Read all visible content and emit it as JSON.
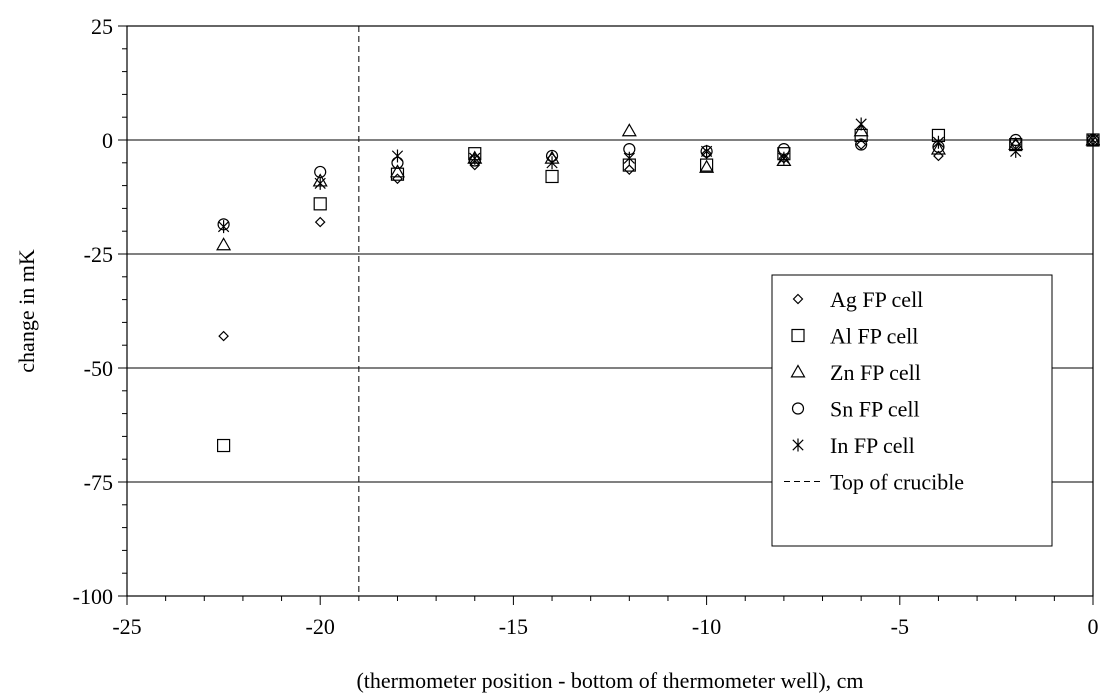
{
  "chart_data": {
    "type": "scatter",
    "title": "",
    "xlabel": "(thermometer position - bottom of thermometer well), cm",
    "ylabel": "change in mK",
    "xlim": [
      -25,
      0
    ],
    "ylim": [
      -100,
      25
    ],
    "xticks": [
      -25,
      -20,
      -15,
      -10,
      -5,
      0
    ],
    "yticks": [
      25,
      0,
      -25,
      -50,
      -75,
      -100
    ],
    "gridlines_y": [
      0,
      -25,
      -50,
      -75
    ],
    "legend_position": "right-center",
    "reference_line": {
      "name": "Top of crucible",
      "x": -19
    },
    "series": [
      {
        "name": "Ag FP cell",
        "marker": "diamond",
        "points": [
          [
            -22.5,
            -43
          ],
          [
            -20,
            -18
          ],
          [
            -18,
            -8.5
          ],
          [
            -16,
            -5.5
          ],
          [
            -14,
            -4
          ],
          [
            -12,
            -6.5
          ],
          [
            -10,
            -3
          ],
          [
            -8,
            -4
          ],
          [
            -6,
            -1
          ],
          [
            -4,
            -3.5
          ],
          [
            -2,
            -1
          ],
          [
            0,
            0
          ]
        ]
      },
      {
        "name": "Al FP cell",
        "marker": "square",
        "points": [
          [
            -22.5,
            -67
          ],
          [
            -20,
            -14
          ],
          [
            -18,
            -7.5
          ],
          [
            -16,
            -3
          ],
          [
            -14,
            -8
          ],
          [
            -12,
            -5.5
          ],
          [
            -10,
            -5.5
          ],
          [
            -8,
            -3
          ],
          [
            -6,
            1
          ],
          [
            -4,
            1
          ],
          [
            -2,
            -1
          ],
          [
            0,
            0
          ]
        ]
      },
      {
        "name": "Zn FP cell",
        "marker": "triangle",
        "points": [
          [
            -22.5,
            -23
          ],
          [
            -20,
            -9
          ],
          [
            -18,
            -7
          ],
          [
            -16,
            -4
          ],
          [
            -14,
            -4
          ],
          [
            -12,
            2
          ],
          [
            -10,
            -6
          ],
          [
            -8,
            -4.5
          ],
          [
            -6,
            2
          ],
          [
            -4,
            -2
          ],
          [
            -2,
            -1
          ],
          [
            0,
            0
          ]
        ]
      },
      {
        "name": "Sn FP cell",
        "marker": "circle",
        "points": [
          [
            -22.5,
            -18.5
          ],
          [
            -20,
            -7
          ],
          [
            -18,
            -5
          ],
          [
            -16,
            -4.5
          ],
          [
            -14,
            -3.5
          ],
          [
            -12,
            -2
          ],
          [
            -10,
            -2.5
          ],
          [
            -8,
            -2
          ],
          [
            -6,
            -1
          ],
          [
            -4,
            -1.5
          ],
          [
            -2,
            0
          ],
          [
            0,
            0
          ]
        ]
      },
      {
        "name": "In FP cell",
        "marker": "asterisk",
        "points": [
          [
            -22.5,
            -19
          ],
          [
            -20,
            -9.5
          ],
          [
            -18,
            -3.5
          ],
          [
            -16,
            -4
          ],
          [
            -14,
            -5
          ],
          [
            -12,
            -4
          ],
          [
            -10,
            -2.5
          ],
          [
            -8,
            -4
          ],
          [
            -6,
            3.5
          ],
          [
            -4,
            -0.5
          ],
          [
            -2,
            -2.5
          ],
          [
            0,
            0
          ]
        ]
      }
    ]
  }
}
